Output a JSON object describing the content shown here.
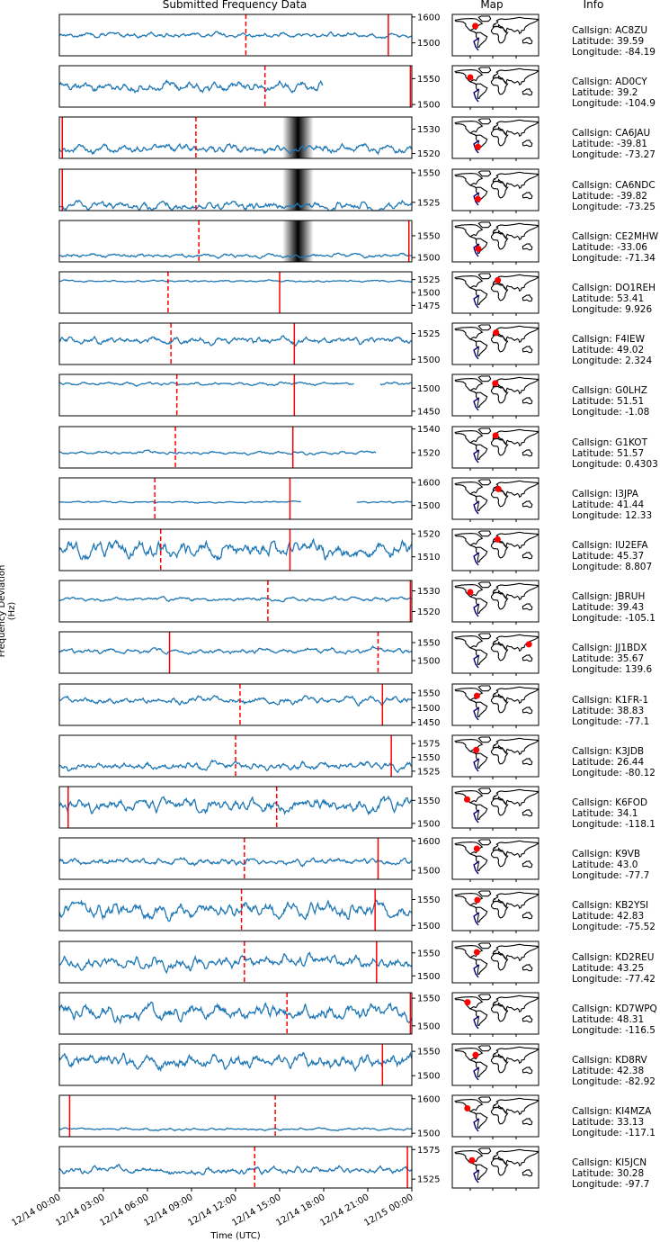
{
  "headers": {
    "data": "Submitted Frequency Data",
    "map": "Map",
    "info": "Info"
  },
  "ylabel": "Frequency Deviation (Hz)",
  "xlabel": "Time (UTC)",
  "info_labels": {
    "callsign": "Callsign: ",
    "latitude": "Latitude: ",
    "longitude": "Longitude: "
  },
  "chart_data": {
    "type": "line",
    "x_range": [
      "12/14 00:00",
      "12/15 00:00"
    ],
    "x_tick_labels": [
      "12/14 00:00",
      "12/14 03:00",
      "12/14 06:00",
      "12/14 09:00",
      "12/14 12:00",
      "12/14 15:00",
      "12/14 18:00",
      "12/14 21:00",
      "12/15 00:00"
    ],
    "line_color": "#1f77b4",
    "marker_color": "#ff0000",
    "panels": [
      {
        "callsign": "AC8ZU",
        "lat": "39.59",
        "lon": "-84.19",
        "ylim": [
          1450,
          1610
        ],
        "yticks": [
          "1500",
          "1600"
        ],
        "base": 1530,
        "amp": 8,
        "solid": [
          22.4
        ],
        "dashed": [
          12.7
        ],
        "gaps": []
      },
      {
        "callsign": "AD0CY",
        "lat": "39.2",
        "lon": "-104.9",
        "ylim": [
          1495,
          1575
        ],
        "yticks": [
          "1500",
          "1550"
        ],
        "base": 1535,
        "amp": 8,
        "solid": [
          23.9
        ],
        "dashed": [
          14.0
        ],
        "gaps": [
          [
            18.0,
            24.0
          ]
        ]
      },
      {
        "callsign": "CA6JAU",
        "lat": "-39.81",
        "lon": "-73.27",
        "ylim": [
          1518,
          1535
        ],
        "yticks": [
          "1520",
          "1530"
        ],
        "base": 1522,
        "amp": 1.5,
        "solid": [
          0.2
        ],
        "dashed": [
          9.3
        ],
        "gaps": [],
        "shade": true
      },
      {
        "callsign": "CA6NDC",
        "lat": "-39.82",
        "lon": "-73.25",
        "ylim": [
          1518,
          1553
        ],
        "yticks": [
          "1525",
          "1550"
        ],
        "base": 1522,
        "amp": 3,
        "solid": [
          0.2
        ],
        "dashed": [
          9.3
        ],
        "gaps": [],
        "shade": true
      },
      {
        "callsign": "CE2MHW",
        "lat": "-33.06",
        "lon": "-71.34",
        "ylim": [
          1490,
          1585
        ],
        "yticks": [
          "1500",
          "1550"
        ],
        "base": 1505,
        "amp": 4,
        "solid": [
          23.8
        ],
        "dashed": [
          9.5
        ],
        "gaps": [],
        "shade": true
      },
      {
        "callsign": "DO1REH",
        "lat": "53.41",
        "lon": "9.926",
        "ylim": [
          1460,
          1540
        ],
        "yticks": [
          "1525",
          "1500",
          "1475"
        ],
        "base": 1522,
        "amp": 1.5,
        "solid": [
          15.0
        ],
        "dashed": [
          7.4
        ],
        "gaps": []
      },
      {
        "callsign": "F4IEW",
        "lat": "49.02",
        "lon": "2.324",
        "ylim": [
          1495,
          1535
        ],
        "yticks": [
          "1525",
          "1500"
        ],
        "base": 1518,
        "amp": 3,
        "solid": [
          16.0
        ],
        "dashed": [
          7.6
        ],
        "gaps": []
      },
      {
        "callsign": "G0LHZ",
        "lat": "51.51",
        "lon": "-1.08",
        "ylim": [
          1440,
          1530
        ],
        "yticks": [
          "1500",
          "1450"
        ],
        "base": 1510,
        "amp": 3,
        "solid": [
          16.0
        ],
        "dashed": [
          8.0
        ],
        "gaps": [
          [
            20.1,
            21.8
          ]
        ]
      },
      {
        "callsign": "G1KOT",
        "lat": "51.57",
        "lon": "0.4303",
        "ylim": [
          1507,
          1542
        ],
        "yticks": [
          "1540",
          "1520"
        ],
        "base": 1520,
        "amp": 1.2,
        "solid": [
          15.9
        ],
        "dashed": [
          7.9
        ],
        "gaps": [
          [
            21.6,
            24.0
          ]
        ]
      },
      {
        "callsign": "I3JPA",
        "lat": "41.44",
        "lon": "12.33",
        "ylim": [
          1440,
          1620
        ],
        "yticks": [
          "1600",
          "1500"
        ],
        "base": 1515,
        "amp": 3,
        "solid": [
          15.7
        ],
        "dashed": [
          6.5
        ],
        "gaps": [
          [
            16.5,
            20.2
          ]
        ]
      },
      {
        "callsign": "IU2EFA",
        "lat": "45.37",
        "lon": "8.807",
        "ylim": [
          1504,
          1522
        ],
        "yticks": [
          "1520",
          "1510"
        ],
        "base": 1513,
        "amp": 3,
        "solid": [
          15.7
        ],
        "dashed": [
          6.9
        ],
        "gaps": []
      },
      {
        "callsign": "JBRUH",
        "lat": "39.43",
        "lon": "-105.1",
        "ylim": [
          1515,
          1535
        ],
        "yticks": [
          "1530",
          "1520"
        ],
        "base": 1526,
        "amp": 0.8,
        "solid": [
          23.9
        ],
        "dashed": [
          14.2
        ],
        "gaps": []
      },
      {
        "callsign": "JJ1BDX",
        "lat": "35.67",
        "lon": "139.6",
        "ylim": [
          1465,
          1580
        ],
        "yticks": [
          "1550",
          "1500"
        ],
        "base": 1527,
        "amp": 6,
        "solid": [
          7.5
        ],
        "dashed": [
          21.7
        ],
        "gaps": []
      },
      {
        "callsign": "K1FR-1",
        "lat": "38.83",
        "lon": "-77.1",
        "ylim": [
          1440,
          1580
        ],
        "yticks": [
          "1550",
          "1500",
          "1450"
        ],
        "base": 1525,
        "amp": 10,
        "solid": [
          22.0
        ],
        "dashed": [
          12.3
        ],
        "gaps": []
      },
      {
        "callsign": "K3JDB",
        "lat": "26.44",
        "lon": "-80.12",
        "ylim": [
          1515,
          1590
        ],
        "yticks": [
          "1575",
          "1550",
          "1525"
        ],
        "base": 1535,
        "amp": 6,
        "solid": [
          22.6
        ],
        "dashed": [
          12.0
        ],
        "gaps": []
      },
      {
        "callsign": "K6FOD",
        "lat": "34.1",
        "lon": "-118.1",
        "ylim": [
          1490,
          1580
        ],
        "yticks": [
          "1550",
          "1500"
        ],
        "base": 1540,
        "amp": 12,
        "solid": [
          0.6
        ],
        "dashed": [
          14.8
        ],
        "gaps": []
      },
      {
        "callsign": "K9VB",
        "lat": "43.0",
        "lon": "-77.7",
        "ylim": [
          1470,
          1610
        ],
        "yticks": [
          "1600",
          "1500"
        ],
        "base": 1530,
        "amp": 10,
        "solid": [
          21.7
        ],
        "dashed": [
          12.6
        ],
        "gaps": []
      },
      {
        "callsign": "KB2YSI",
        "lat": "42.83",
        "lon": "-75.52",
        "ylim": [
          1490,
          1570
        ],
        "yticks": [
          "1550",
          "1500"
        ],
        "base": 1530,
        "amp": 12,
        "solid": [
          21.5
        ],
        "dashed": [
          12.4
        ],
        "gaps": []
      },
      {
        "callsign": "KD2REU",
        "lat": "43.25",
        "lon": "-77.42",
        "ylim": [
          1485,
          1575
        ],
        "yticks": [
          "1550",
          "1500"
        ],
        "base": 1530,
        "amp": 12,
        "solid": [
          21.6
        ],
        "dashed": [
          12.6
        ],
        "gaps": []
      },
      {
        "callsign": "KD7WPQ",
        "lat": "48.31",
        "lon": "-116.5",
        "ylim": [
          1485,
          1560
        ],
        "yticks": [
          "1550",
          "1500"
        ],
        "base": 1525,
        "amp": 12,
        "solid": [
          23.9
        ],
        "dashed": [
          15.5
        ],
        "gaps": []
      },
      {
        "callsign": "KD8RV",
        "lat": "42.38",
        "lon": "-82.92",
        "ylim": [
          1480,
          1565
        ],
        "yticks": [
          "1550",
          "1500"
        ],
        "base": 1530,
        "amp": 12,
        "solid": [
          22.0
        ],
        "dashed": [],
        "gaps": []
      },
      {
        "callsign": "KI4MZA",
        "lat": "33.13",
        "lon": "-117.1",
        "ylim": [
          1490,
          1610
        ],
        "yticks": [
          "1600",
          "1500"
        ],
        "base": 1512,
        "amp": 3,
        "solid": [
          0.7
        ],
        "dashed": [
          14.7
        ],
        "gaps": []
      },
      {
        "callsign": "KI5JCN",
        "lat": "30.28",
        "lon": "-97.7",
        "ylim": [
          1510,
          1580
        ],
        "yticks": [
          "1575",
          "1525"
        ],
        "base": 1540,
        "amp": 5,
        "solid": [
          23.7
        ],
        "dashed": [
          13.3
        ],
        "gaps": []
      }
    ]
  }
}
